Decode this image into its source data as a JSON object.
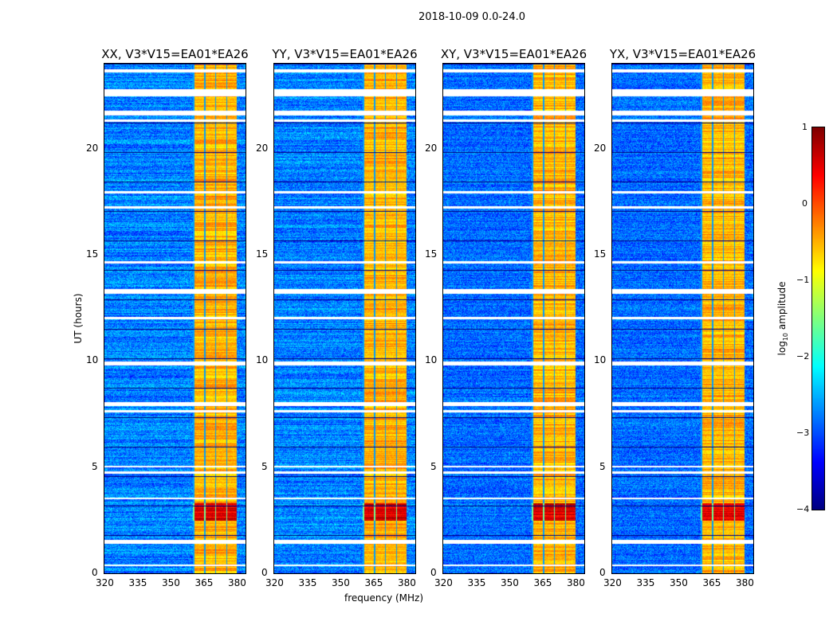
{
  "suptitle": "2018-10-09 0.0-24.0",
  "chart_data": {
    "type": "heatmap",
    "title": "2018-10-09 0.0-24.0",
    "xlabel": "frequency (MHz)",
    "ylabel": "UT (hours)",
    "xlim": [
      320,
      384
    ],
    "ylim": [
      0,
      24
    ],
    "xticks": [
      "320",
      "335",
      "350",
      "365",
      "380"
    ],
    "yticks": [
      "0",
      "5",
      "10",
      "15",
      "20"
    ],
    "panels": [
      {
        "title": "XX, V3*V15=EA01*EA26"
      },
      {
        "title": "YY, V3*V15=EA01*EA26"
      },
      {
        "title": "XY, V3*V15=EA01*EA26"
      },
      {
        "title": "YX, V3*V15=EA01*EA26"
      }
    ],
    "rfi_band_mhz": [
      360,
      380
    ],
    "background_log10_amplitude": -3,
    "rfi_band_log10_amplitude": -0.8,
    "strong_rfi_hours": [
      2.5,
      3.3
    ],
    "flagged_hours": [
      [
        23.6,
        23.75
      ],
      [
        22.5,
        22.8
      ],
      [
        21.6,
        21.8
      ],
      [
        21.3,
        21.4
      ],
      [
        17.9,
        18.0
      ],
      [
        17.2,
        17.3
      ],
      [
        14.6,
        14.7
      ],
      [
        13.2,
        13.4
      ],
      [
        12.0,
        12.1
      ],
      [
        9.8,
        10.0
      ],
      [
        7.9,
        8.1
      ],
      [
        7.6,
        7.7
      ],
      [
        5.0,
        5.1
      ],
      [
        4.7,
        4.8
      ],
      [
        3.5,
        3.6
      ],
      [
        1.4,
        1.6
      ],
      [
        0.35,
        0.45
      ]
    ],
    "colorbar": {
      "label": "log10 amplitude",
      "label_main": "log",
      "label_sub": "10",
      "label_rest": " amplitude",
      "range": [
        -4,
        1
      ],
      "ticks": [
        "1",
        "0",
        "−1",
        "−2",
        "−3",
        "−4"
      ],
      "colormap": "jet"
    }
  }
}
